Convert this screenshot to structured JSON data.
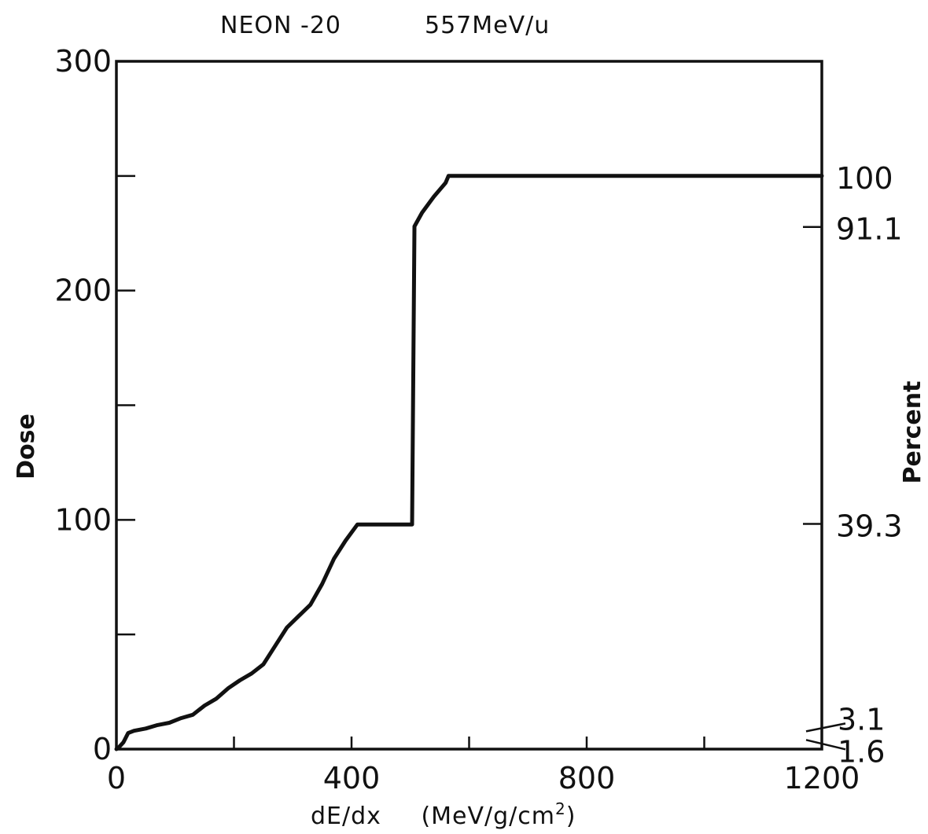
{
  "chart_data": {
    "type": "line",
    "title": "NEON -20",
    "subtitle": "557MeV/u",
    "xlabel": "dE/dx",
    "xlabel_unit": "(MeV/g/cm",
    "xlabel_unit_sup": "2",
    "xlabel_unit_close": ")",
    "ylabel": "Dose",
    "y2label": "Percent",
    "xlim": [
      0,
      1200
    ],
    "ylim": [
      0,
      300
    ],
    "x_ticks_labeled": [
      "0",
      "400",
      "800",
      "1200"
    ],
    "x_tick_values": [
      0,
      200,
      400,
      600,
      800,
      1000,
      1200
    ],
    "x_tick_label_values": [
      0,
      400,
      800,
      1200
    ],
    "y_ticks_labeled": [
      "0",
      "100",
      "200",
      "300"
    ],
    "y_tick_values": [
      0,
      50,
      100,
      150,
      200,
      250,
      300
    ],
    "y_tick_label_values": [
      0,
      100,
      200,
      300
    ],
    "y2_ticks": [
      {
        "label": "100",
        "dose": 250
      },
      {
        "label": "91.1",
        "dose": 227.75
      },
      {
        "label": "39.3",
        "dose": 98.25
      },
      {
        "label": "3.1",
        "dose": 7.75
      },
      {
        "label": "1.6",
        "dose": 4
      }
    ],
    "grid": false,
    "legend": "none",
    "series": [
      {
        "x": [
          0,
          5,
          12,
          20,
          30,
          50,
          70,
          90,
          110,
          130,
          150,
          170,
          190,
          210,
          230,
          250,
          270,
          290,
          310,
          330,
          350,
          370,
          390,
          410,
          420,
          450,
          480,
          503,
          507,
          520,
          540,
          560,
          565,
          600,
          700,
          800,
          900,
          1000,
          1100,
          1200
        ],
        "y": [
          0,
          1,
          3,
          7,
          8,
          9,
          10.5,
          11.5,
          13.5,
          15,
          19,
          22,
          26.5,
          30,
          33,
          37,
          45,
          53,
          58,
          63,
          72,
          83,
          91,
          98,
          98,
          98,
          98,
          98,
          228,
          234,
          241,
          247,
          250,
          250,
          250,
          250,
          250,
          250,
          250,
          250
        ]
      }
    ]
  }
}
